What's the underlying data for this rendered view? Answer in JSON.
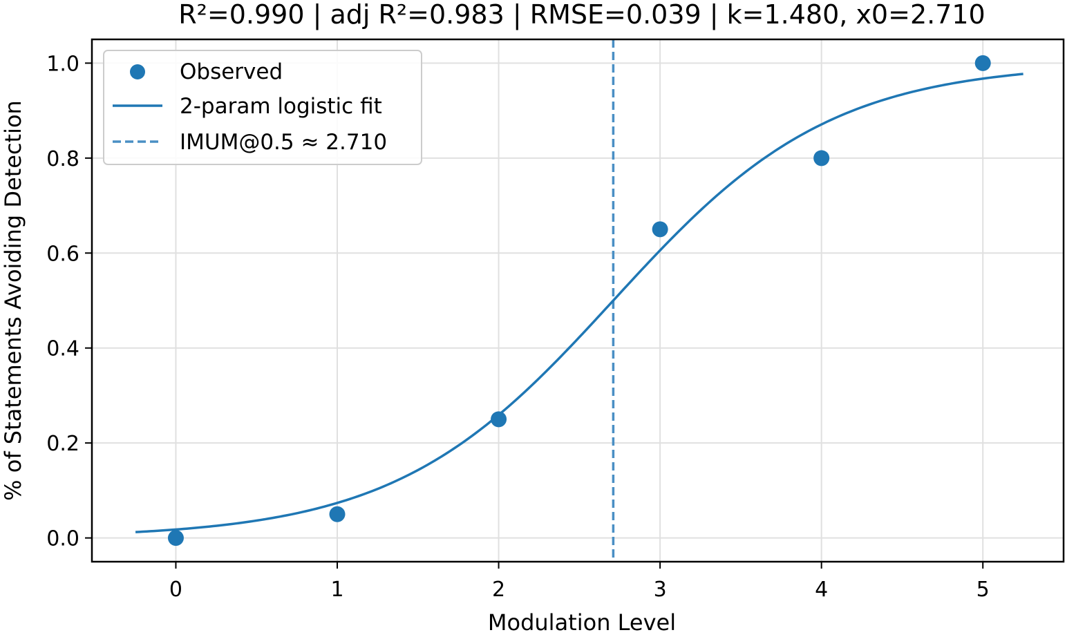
{
  "chart_data": {
    "type": "scatter",
    "title": "R²=0.990 | adj R²=0.983 | RMSE=0.039 | k=1.480, x0=2.710",
    "xlabel": "Modulation Level",
    "ylabel": "% of Statements Avoiding Detection",
    "xlim": [
      -0.52,
      5.5
    ],
    "ylim": [
      -0.05,
      1.05
    ],
    "xticks": [
      0,
      1,
      2,
      3,
      4,
      5
    ],
    "yticks": [
      0.0,
      0.2,
      0.4,
      0.6,
      0.8,
      1.0
    ],
    "xtick_labels": [
      "0",
      "1",
      "2",
      "3",
      "4",
      "5"
    ],
    "ytick_labels": [
      "0.0",
      "0.2",
      "0.4",
      "0.6",
      "0.8",
      "1.0"
    ],
    "grid": true,
    "legend_position": "top-left",
    "series": [
      {
        "name": "Observed",
        "kind": "scatter",
        "color": "#1f77b4",
        "x": [
          0,
          1,
          2,
          3,
          4,
          5
        ],
        "y": [
          0.0,
          0.05,
          0.25,
          0.65,
          0.8,
          1.0
        ]
      },
      {
        "name": "2-param logistic fit",
        "kind": "line",
        "color": "#1f77b4",
        "model": "logistic",
        "k": 1.48,
        "x0": 2.71,
        "x_range": [
          -0.25,
          5.25
        ]
      },
      {
        "name": "IMUM@0.5 ≈ 2.710",
        "kind": "vline",
        "color": "#4a8fc4",
        "dashed": true,
        "x": 2.71
      }
    ]
  }
}
